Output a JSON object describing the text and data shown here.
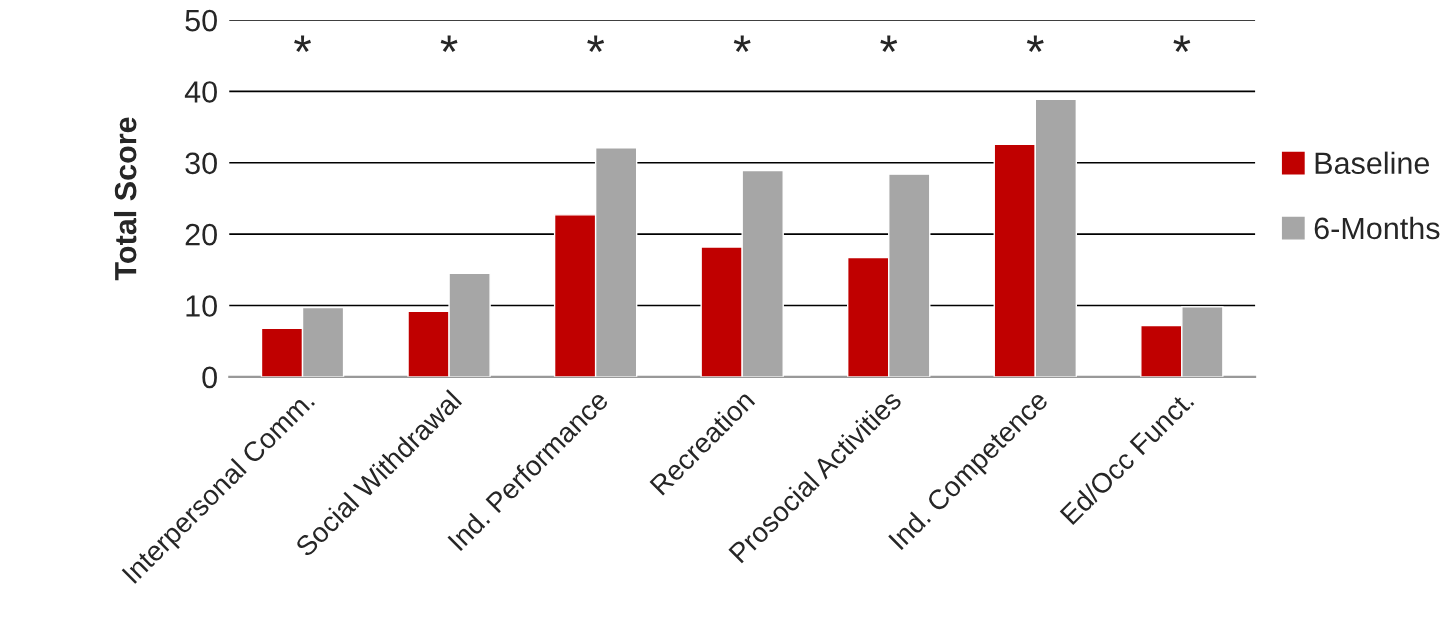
{
  "chart_data": {
    "type": "bar",
    "ylabel": "Total Score",
    "categories": [
      "Interpersonal Comm.",
      "Social Withdrawal",
      "Ind. Performance",
      "Recreation",
      "Prosocial Activities",
      "Ind. Competence",
      "Ed/Occ Funct."
    ],
    "series": [
      {
        "name": "Baseline",
        "color": "#c00000",
        "values": [
          6.8,
          9.2,
          22.7,
          18.2,
          16.7,
          32.6,
          7.2
        ]
      },
      {
        "name": "6-Months",
        "color": "#a6a6a6",
        "values": [
          9.7,
          14.5,
          32.1,
          28.9,
          28.4,
          38.9,
          9.8
        ]
      }
    ],
    "ylim": [
      0,
      50
    ],
    "yticks": [
      0,
      10,
      20,
      30,
      40,
      50
    ],
    "grid": "y",
    "legend": "right",
    "annotations": [
      "*",
      "*",
      "*",
      "*",
      "*",
      "*",
      "*"
    ]
  }
}
